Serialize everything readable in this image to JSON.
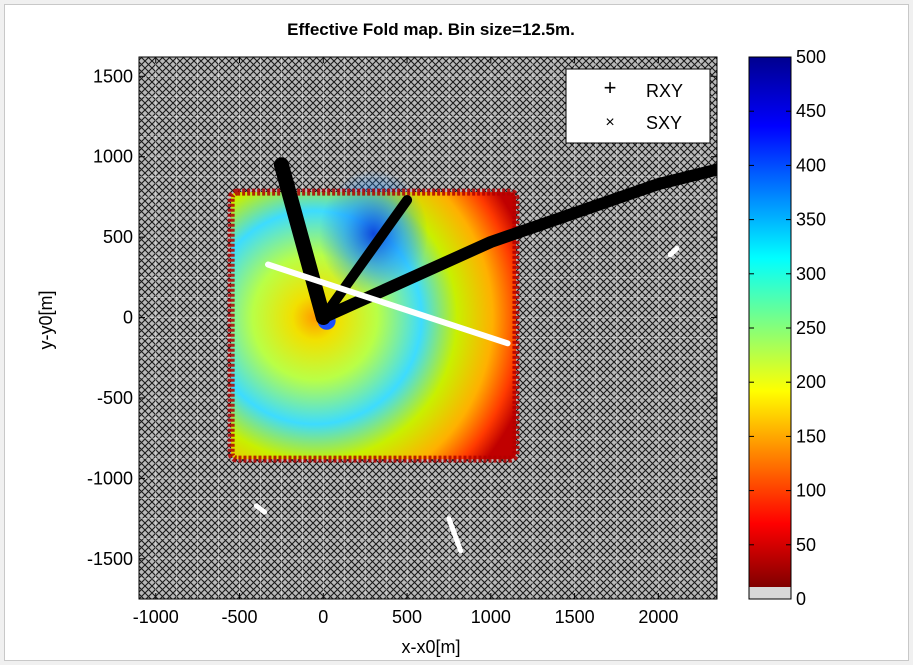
{
  "chart_data": {
    "type": "heatmap",
    "title": "Effective Fold map. Bin size=12.5m.",
    "xlabel": "x-x0[m]",
    "ylabel": "y-y0[m]",
    "xlim": [
      -1100,
      2350
    ],
    "ylim": [
      -1750,
      1620
    ],
    "xticks": [
      -1000,
      -500,
      0,
      500,
      1000,
      1500,
      2000
    ],
    "yticks": [
      1500,
      1000,
      500,
      0,
      -500,
      -1000,
      -1500
    ],
    "grid": true,
    "legend": {
      "placement": "top-right",
      "entries": [
        {
          "marker": "+",
          "label": "RXY"
        },
        {
          "marker": "×",
          "label": "SXY"
        }
      ]
    },
    "colorbar": {
      "min": 0,
      "max": 500,
      "ticks": [
        0,
        50,
        100,
        150,
        200,
        250,
        300,
        350,
        400,
        450,
        500
      ],
      "colormap": "jet"
    },
    "fold_region": {
      "x": [
        -550,
        1150
      ],
      "y": [
        -880,
        780
      ],
      "peak_center": [
        -50,
        0
      ],
      "peak_value": 250,
      "edge_value": 100
    },
    "receiver_lines": [
      {
        "points": [
          [
            -250,
            950
          ],
          [
            0,
            0
          ]
        ]
      },
      {
        "points": [
          [
            0,
            0
          ],
          [
            500,
            730
          ]
        ]
      },
      {
        "points": [
          [
            0,
            0
          ],
          [
            1000,
            470
          ],
          [
            2000,
            830
          ],
          [
            2350,
            920
          ]
        ]
      }
    ],
    "source_lines": [
      {
        "points": [
          [
            -330,
            330
          ],
          [
            1100,
            -160
          ]
        ]
      },
      {
        "points": [
          [
            -400,
            -1170
          ],
          [
            -350,
            -1210
          ]
        ]
      },
      {
        "points": [
          [
            750,
            -1250
          ],
          [
            820,
            -1450
          ]
        ]
      },
      {
        "points": [
          [
            2070,
            390
          ],
          [
            2110,
            430
          ]
        ]
      }
    ]
  }
}
